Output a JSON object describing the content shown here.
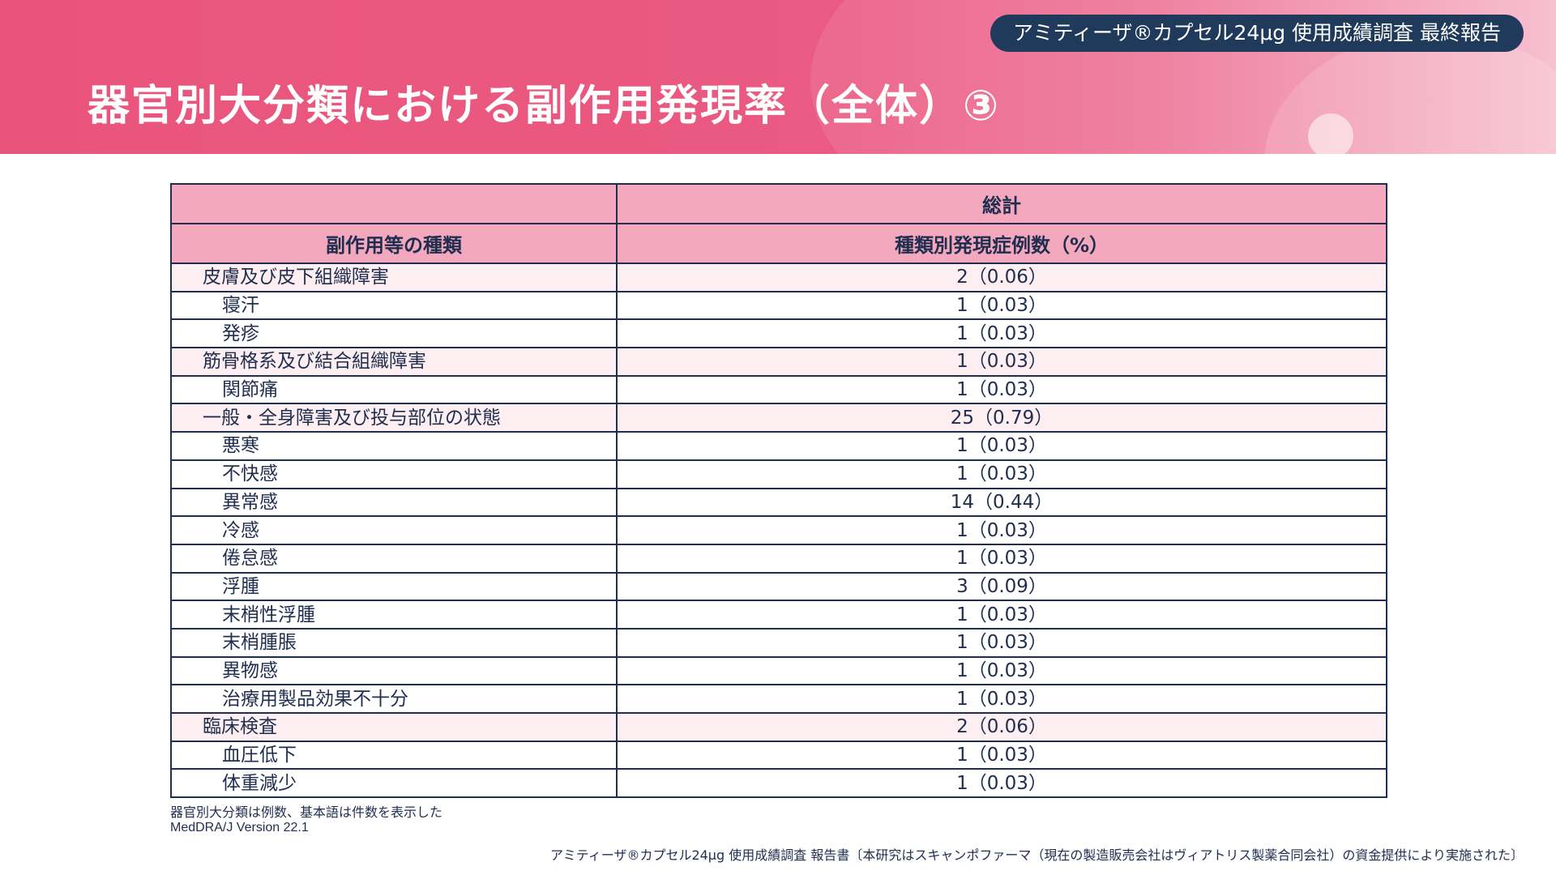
{
  "header": {
    "report_badge": "アミティーザ®カプセル24μg 使用成績調査 最終報告",
    "title": "器官別大分類における副作用発現率（全体）③"
  },
  "table": {
    "top_header": "総計",
    "col1_header": "副作用等の種類",
    "col2_header": "種類別発現症例数（%）",
    "rows": [
      {
        "name": "皮膚及び皮下組織障害",
        "value": "2（0.06）",
        "level": "soc"
      },
      {
        "name": "寝汗",
        "value": "1（0.03）",
        "level": "pt"
      },
      {
        "name": "発疹",
        "value": "1（0.03）",
        "level": "pt"
      },
      {
        "name": "筋骨格系及び結合組織障害",
        "value": "1（0.03）",
        "level": "soc"
      },
      {
        "name": "関節痛",
        "value": "1（0.03）",
        "level": "pt"
      },
      {
        "name": "一般・全身障害及び投与部位の状態",
        "value": "25（0.79）",
        "level": "soc"
      },
      {
        "name": "悪寒",
        "value": "1（0.03）",
        "level": "pt"
      },
      {
        "name": "不快感",
        "value": "1（0.03）",
        "level": "pt"
      },
      {
        "name": "異常感",
        "value": "14（0.44）",
        "level": "pt"
      },
      {
        "name": "冷感",
        "value": "1（0.03）",
        "level": "pt"
      },
      {
        "name": "倦怠感",
        "value": "1（0.03）",
        "level": "pt"
      },
      {
        "name": "浮腫",
        "value": "3（0.09）",
        "level": "pt"
      },
      {
        "name": "末梢性浮腫",
        "value": "1（0.03）",
        "level": "pt"
      },
      {
        "name": "末梢腫脹",
        "value": "1（0.03）",
        "level": "pt"
      },
      {
        "name": "異物感",
        "value": "1（0.03）",
        "level": "pt"
      },
      {
        "name": "治療用製品効果不十分",
        "value": "1（0.03）",
        "level": "pt"
      },
      {
        "name": "臨床検査",
        "value": "2（0.06）",
        "level": "soc"
      },
      {
        "name": "血圧低下",
        "value": "1（0.03）",
        "level": "pt"
      },
      {
        "name": "体重減少",
        "value": "1（0.03）",
        "level": "pt"
      }
    ]
  },
  "footnote": {
    "line1": "器官別大分類は例数、基本語は件数を表示した",
    "line2": "MedDRA/J Version 22.1"
  },
  "source": "アミティーザ®カプセル24μg 使用成績調査 報告書〔本研究はスキャンポファーマ（現在の製造販売会社はヴィアトリス製薬合同会社）の資金提供により実施された〕"
}
